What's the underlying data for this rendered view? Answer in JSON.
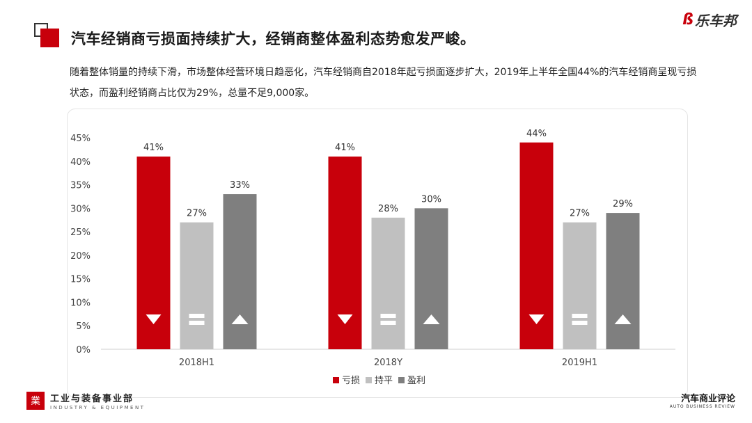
{
  "header": {
    "title": "汽车经销商亏损面持续扩大，经销商整体盈利态势愈发严峻。",
    "logo_text": "乐车邦"
  },
  "description": "随着整体销量的持续下滑，市场整体经营环境日趋恶化，汽车经销商自2018年起亏损面逐步扩大，2019年上半年全国44%的汽车经销商呈现亏损状态，而盈利经销商占比仅为29%，总量不足9,000家。",
  "chart_data": {
    "type": "bar",
    "categories": [
      "2018H1",
      "2018Y",
      "2019H1"
    ],
    "series": [
      {
        "name": "亏损",
        "values": [
          41,
          41,
          44
        ],
        "labels": [
          "41%",
          "41%",
          "44%"
        ],
        "color": "#c8000b",
        "icon": "down-triangle-icon"
      },
      {
        "name": "持平",
        "values": [
          27,
          28,
          27
        ],
        "labels": [
          "27%",
          "28%",
          "27%"
        ],
        "color": "#c0c0c0",
        "icon": "equals-icon"
      },
      {
        "name": "盈利",
        "values": [
          33,
          30,
          29
        ],
        "labels": [
          "33%",
          "30%",
          "29%"
        ],
        "color": "#7f7f7f",
        "icon": "up-triangle-icon"
      }
    ],
    "yticks": [
      "0%",
      "5%",
      "10%",
      "15%",
      "20%",
      "25%",
      "30%",
      "35%",
      "40%",
      "45%"
    ],
    "ylim": [
      0,
      45
    ],
    "grid": false,
    "legend_position": "bottom"
  },
  "footer": {
    "left_name": "工业与装备事业部",
    "left_en": "INDUSTRY & EQUIPMENT",
    "right_name": "汽车商业评论",
    "right_en": "AUTO BUSINESS REVIEW"
  }
}
